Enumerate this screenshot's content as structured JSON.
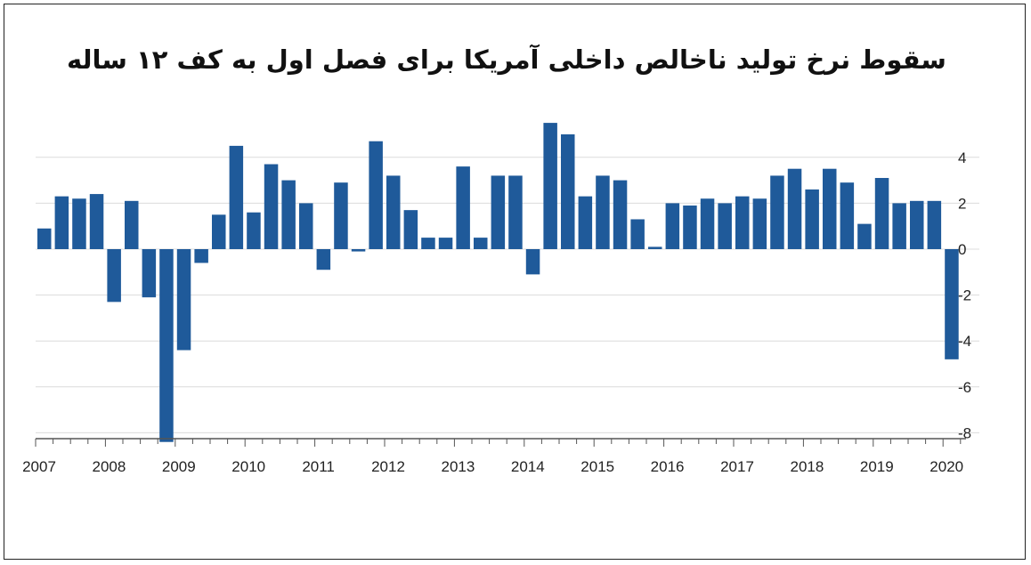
{
  "chart_data": {
    "type": "bar",
    "title": "سقوط نرخ تولید ناخالص داخلی آمریکا برای فصل اول به کف ۱۲ ساله",
    "xlabel": "",
    "ylabel": "",
    "x_tick_labels": [
      "2007",
      "2008",
      "2009",
      "2010",
      "2011",
      "2012",
      "2013",
      "2014",
      "2015",
      "2016",
      "2017",
      "2018",
      "2019",
      "2020"
    ],
    "y_ticks": [
      4,
      2,
      0,
      -2,
      -4,
      -6,
      -8
    ],
    "y_tick_labels": [
      "4",
      "2",
      "0",
      "-2",
      "-4",
      "-6",
      "-8"
    ],
    "ylim": [
      -8.3,
      5.6
    ],
    "grid": true,
    "bar_color": "#1f5a9a",
    "values": [
      0.9,
      2.3,
      2.2,
      2.4,
      -2.3,
      2.1,
      -2.1,
      -8.4,
      -4.4,
      -0.6,
      1.5,
      4.5,
      1.6,
      3.7,
      3.0,
      2.0,
      -0.9,
      2.9,
      -0.1,
      4.7,
      3.2,
      1.7,
      0.5,
      0.5,
      3.6,
      0.5,
      3.2,
      3.2,
      -1.1,
      5.5,
      5.0,
      2.3,
      3.2,
      3.0,
      1.3,
      0.1,
      2.0,
      1.9,
      2.2,
      2.0,
      2.3,
      2.2,
      3.2,
      3.5,
      2.6,
      3.5,
      2.9,
      1.1,
      3.1,
      2.0,
      2.1,
      2.1,
      -4.8
    ]
  }
}
